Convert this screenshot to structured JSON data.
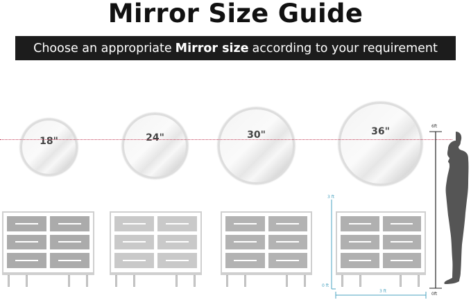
{
  "title": "Mirror Size Guide",
  "subtitle": {
    "before": "Choose an appropriate",
    "bold": "Mirror size",
    "after": "according to your requirement"
  },
  "mirrors": [
    {
      "label": "18\""
    },
    {
      "label": "24\""
    },
    {
      "label": "30\""
    },
    {
      "label": "36\""
    }
  ],
  "dressers": [
    {
      "drawer_color": "#ababab"
    },
    {
      "drawer_color": "#c9c9c9"
    },
    {
      "drawer_color": "#b3b3b3"
    },
    {
      "drawer_color": "#b0b0b0"
    }
  ],
  "person_scale": {
    "top": "6ft",
    "bottom": "0ft"
  },
  "dresser_dimensions": {
    "height_top": "3 ft",
    "height_bottom": "0 ft",
    "width": "3 ft"
  },
  "colors": {
    "eye_line": "#c23a55",
    "dimension": "#4aa3c0",
    "banner": "#1c1c1c",
    "silhouette": "#555555"
  }
}
